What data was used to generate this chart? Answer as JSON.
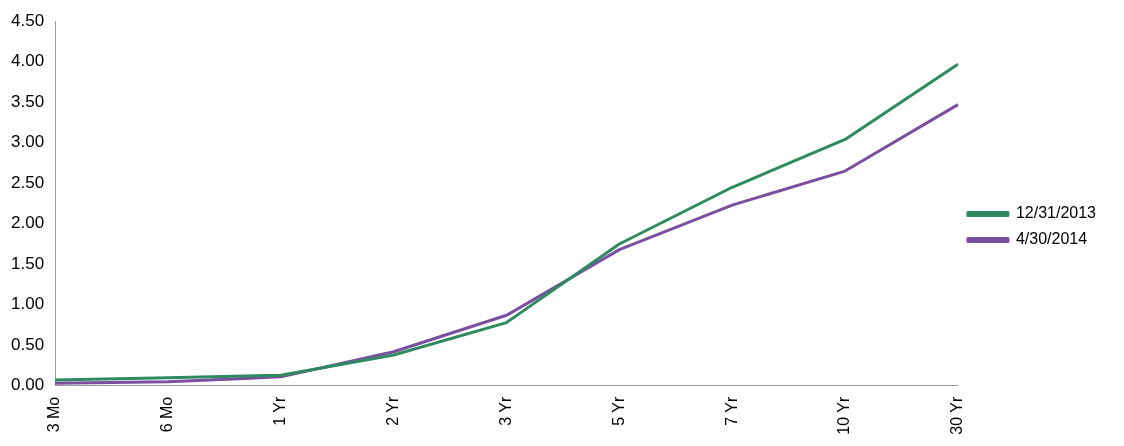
{
  "chart_data": {
    "type": "line",
    "categories": [
      "3 Mo",
      "6 Mo",
      "1 Yr",
      "2 Yr",
      "3 Yr",
      "5 Yr",
      "7 Yr",
      "10 Yr",
      "30 Yr"
    ],
    "series": [
      {
        "name": "12/31/2013",
        "color": "#2e8b5f",
        "values": [
          0.07,
          0.1,
          0.13,
          0.38,
          0.78,
          1.75,
          2.45,
          3.04,
          3.97
        ]
      },
      {
        "name": "4/30/2014",
        "color": "#7b4fa0",
        "values": [
          0.03,
          0.05,
          0.11,
          0.42,
          0.87,
          1.68,
          2.23,
          2.65,
          3.47
        ]
      }
    ],
    "ylim": [
      0,
      4.5
    ],
    "yticks": [
      {
        "value": 0,
        "label": "0.00"
      },
      {
        "value": 0.5,
        "label": "0.50"
      },
      {
        "value": 1,
        "label": "1.00"
      },
      {
        "value": 1.5,
        "label": "1.50"
      },
      {
        "value": 2,
        "label": "2.00"
      },
      {
        "value": 2.5,
        "label": "2.50"
      },
      {
        "value": 3,
        "label": "3.00"
      },
      {
        "value": 3.5,
        "label": "3.50"
      },
      {
        "value": 4,
        "label": "4.00"
      },
      {
        "value": 4.5,
        "label": "4.50"
      }
    ],
    "grid": false,
    "legend": "right",
    "marker": "none",
    "line_style": "solid"
  }
}
